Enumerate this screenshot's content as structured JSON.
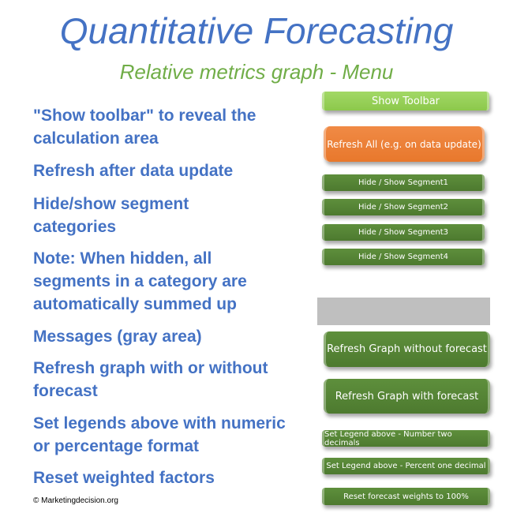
{
  "header": {
    "title": "Quantitative Forecasting",
    "subtitle": "Relative metrics graph - Menu"
  },
  "descriptions": [
    "\"Show toolbar\" to reveal the calculation area",
    "Refresh after data update",
    "Hide/show segment categories",
    "Note: When hidden, all segments in a category are automatically summed up",
    "Messages (gray area)",
    "Refresh graph with or without forecast",
    "Set legends above with numeric or percentage format",
    "Reset weighted factors"
  ],
  "buttons": {
    "show_toolbar": "Show Toolbar",
    "refresh_all": "Refresh All (e.g. on data update)",
    "segment1": "Hide / Show Segment1",
    "segment2": "Hide / Show Segment2",
    "segment3": "Hide / Show Segment3",
    "segment4": "Hide / Show Segment4",
    "refresh_without": "Refresh Graph without forecast",
    "refresh_with": "Refresh Graph with forecast",
    "legend_number": "Set Legend above - Number two decimals",
    "legend_percent": "Set Legend above - Percent one decimal",
    "reset_weights": "Reset forecast weights to 100%"
  },
  "footer": {
    "copyright": "© Marketingdecision.org"
  },
  "colors": {
    "title": "#4472c4",
    "subtitle": "#70ad47",
    "light_green": "#92d050",
    "orange": "#ed7d31",
    "dark_green": "#548235",
    "message_area": "#bfbfbf"
  }
}
